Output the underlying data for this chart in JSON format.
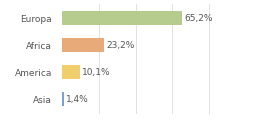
{
  "categories": [
    "Europa",
    "Africa",
    "America",
    "Asia"
  ],
  "values": [
    65.2,
    23.2,
    10.1,
    1.4
  ],
  "labels": [
    "65,2%",
    "23,2%",
    "10,1%",
    "1,4%"
  ],
  "bar_colors": [
    "#b5cc8e",
    "#e8aa78",
    "#f0cf6a",
    "#7a9fd4"
  ],
  "background_color": "#ffffff",
  "xlim": [
    0,
    100
  ],
  "label_fontsize": 6.5,
  "category_fontsize": 6.5,
  "grid_color": "#dddddd"
}
